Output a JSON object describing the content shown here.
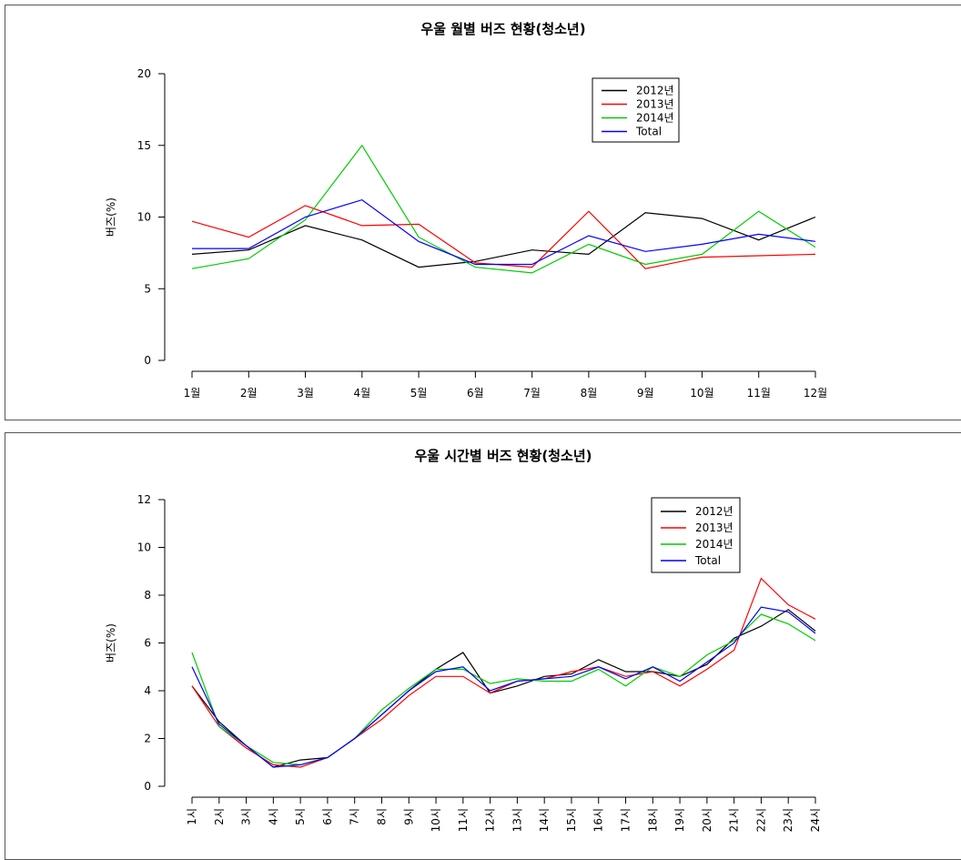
{
  "chart_data": [
    {
      "type": "line",
      "title": "우울 월별 버즈 현황(청소년)",
      "xlabel": "",
      "ylabel": "버즈(%)",
      "ylim": [
        0,
        20
      ],
      "yticks": [
        0,
        5,
        10,
        15,
        20
      ],
      "categories": [
        "1월",
        "2월",
        "3월",
        "4월",
        "5월",
        "6월",
        "7월",
        "8월",
        "9월",
        "10월",
        "11월",
        "12월"
      ],
      "legend_position": "top-right",
      "series": [
        {
          "name": "2012년",
          "color": "#000000",
          "values": [
            7.4,
            7.7,
            9.4,
            8.4,
            6.5,
            6.9,
            7.7,
            7.4,
            10.3,
            9.9,
            8.4,
            10.0
          ]
        },
        {
          "name": "2013년",
          "color": "#ff0000",
          "values": [
            9.7,
            8.6,
            10.8,
            9.4,
            9.5,
            6.8,
            6.5,
            10.4,
            6.4,
            7.2,
            7.3,
            7.4
          ]
        },
        {
          "name": "2014년",
          "color": "#00cc00",
          "values": [
            6.4,
            7.1,
            9.8,
            15.0,
            8.6,
            6.5,
            6.1,
            8.1,
            6.7,
            7.4,
            10.4,
            7.9
          ]
        },
        {
          "name": "Total",
          "color": "#0000ff",
          "values": [
            7.8,
            7.8,
            10.0,
            11.2,
            8.3,
            6.7,
            6.7,
            8.7,
            7.6,
            8.1,
            8.8,
            8.3
          ]
        }
      ]
    },
    {
      "type": "line",
      "title": "우울 시간별 버즈 현황(청소년)",
      "xlabel": "",
      "ylabel": "버즈(%)",
      "ylim": [
        0,
        12
      ],
      "yticks": [
        0,
        2,
        4,
        6,
        8,
        10,
        12
      ],
      "categories": [
        "1시",
        "2시",
        "3시",
        "4시",
        "5시",
        "6시",
        "7시",
        "8시",
        "9시",
        "10시",
        "11시",
        "12시",
        "13시",
        "14시",
        "15시",
        "16시",
        "17시",
        "18시",
        "19시",
        "20시",
        "21시",
        "22시",
        "23시",
        "24시"
      ],
      "legend_position": "top-right",
      "series": [
        {
          "name": "2012년",
          "color": "#000000",
          "values": [
            4.2,
            2.7,
            1.7,
            0.8,
            1.1,
            1.2,
            2.0,
            3.0,
            4.0,
            4.9,
            5.6,
            3.9,
            4.2,
            4.6,
            4.7,
            5.3,
            4.8,
            4.8,
            4.6,
            5.1,
            6.2,
            6.7,
            7.4,
            6.5
          ]
        },
        {
          "name": "2013년",
          "color": "#ff0000",
          "values": [
            4.2,
            2.5,
            1.6,
            0.9,
            0.8,
            1.2,
            2.0,
            2.8,
            3.8,
            4.6,
            4.6,
            3.9,
            4.4,
            4.5,
            4.8,
            5.0,
            4.6,
            4.8,
            4.2,
            4.9,
            5.7,
            8.7,
            7.6,
            7.0
          ]
        },
        {
          "name": "2014년",
          "color": "#00cc00",
          "values": [
            5.6,
            2.5,
            1.7,
            1.0,
            0.9,
            1.2,
            2.0,
            3.2,
            4.1,
            4.9,
            4.9,
            4.3,
            4.5,
            4.4,
            4.4,
            4.9,
            4.2,
            5.0,
            4.6,
            5.5,
            6.1,
            7.2,
            6.8,
            6.1
          ]
        },
        {
          "name": "Total",
          "color": "#0000ff",
          "values": [
            5.0,
            2.6,
            1.7,
            0.8,
            0.9,
            1.2,
            2.0,
            3.0,
            4.0,
            4.8,
            5.0,
            4.0,
            4.4,
            4.5,
            4.6,
            5.0,
            4.5,
            5.0,
            4.4,
            5.2,
            6.0,
            7.5,
            7.3,
            6.4
          ]
        }
      ]
    }
  ]
}
